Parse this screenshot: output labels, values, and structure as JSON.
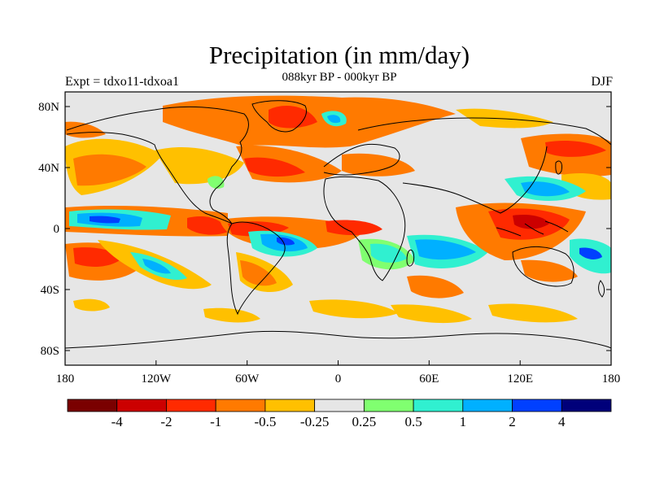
{
  "plot": {
    "title": "Precipitation (in mm/day)",
    "left_label": "Expt = tdxo11-tdxoa1",
    "center_label": "088kyr BP - 000kyr BP",
    "right_label": "DJF"
  },
  "axes": {
    "lon_ticks": [
      "180",
      "120W",
      "60W",
      "0",
      "60E",
      "120E",
      "180"
    ],
    "lat_ticks": [
      "80N",
      "40N",
      "0",
      "40S",
      "80S"
    ]
  },
  "colorbar": {
    "colors": [
      "#7a0000",
      "#cc0000",
      "#ff2a00",
      "#ff7a00",
      "#ffc000",
      "#e6e6e6",
      "#80ff70",
      "#30f0d0",
      "#00b0ff",
      "#0040ff",
      "#00007a"
    ],
    "labels": [
      "-4",
      "-2",
      "-1",
      "-0.5",
      "-0.25",
      "0.25",
      "0.5",
      "1",
      "2",
      "4"
    ]
  },
  "colors": {
    "ocean_background": "#e6e6e6",
    "coastline": "#000000"
  }
}
